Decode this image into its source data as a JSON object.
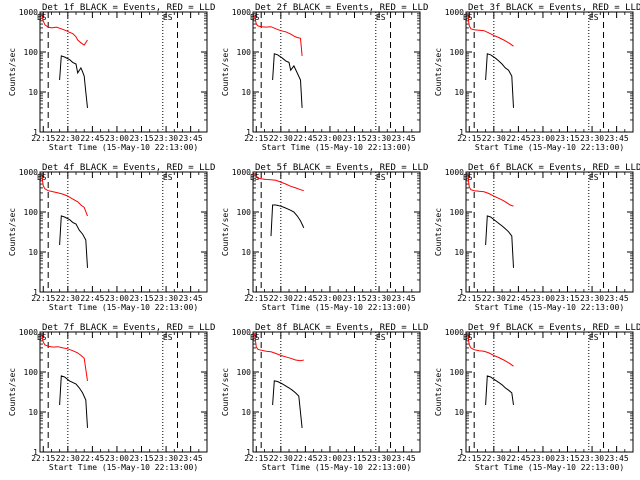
{
  "figure": {
    "background": "#ffffff",
    "events_color": "#000000",
    "lld_color": "#ff0000"
  },
  "chart_data": [
    {
      "type": "line",
      "title": "Det 1f BLACK = Events, RED = LLD",
      "xlabel": "Start Time (15-May-10 22:13:00)",
      "ylabel": "Counts/sec",
      "xlim": [
        "22:13",
        "23:55"
      ],
      "ylim": [
        1,
        1000
      ],
      "y_scale": "log",
      "x_ticks": [
        "22:15",
        "22:30",
        "22:45",
        "23:00",
        "23:15",
        "23:30",
        "23:45"
      ],
      "y_ticks": [
        "1",
        "10",
        "100",
        "1000"
      ],
      "markers": [
        {
          "label": "ES",
          "x": "22:14"
        },
        {
          "label": "ES",
          "x": "23:31"
        }
      ],
      "dashed_lines": [
        "22:18",
        "23:37"
      ],
      "dotted_lines": [
        "22:30",
        "23:28"
      ],
      "series": [
        {
          "name": "RED = LLD",
          "x": [
            "22:14",
            "22:15",
            "22:16",
            "22:18",
            "22:20",
            "22:23",
            "22:26",
            "22:29",
            "22:31",
            "22:33",
            "22:35",
            "22:36",
            "22:38",
            "22:40",
            "22:42"
          ],
          "y": [
            900,
            600,
            480,
            420,
            400,
            420,
            380,
            340,
            310,
            290,
            240,
            200,
            170,
            150,
            200
          ]
        },
        {
          "name": "BLACK = Events",
          "x": [
            "22:25",
            "22:26",
            "22:28",
            "22:31",
            "22:33",
            "22:35",
            "22:36",
            "22:38",
            "22:39",
            "22:40",
            "22:41",
            "22:42"
          ],
          "y": [
            20,
            80,
            75,
            65,
            55,
            50,
            30,
            40,
            32,
            25,
            10,
            4
          ]
        }
      ]
    },
    {
      "type": "line",
      "title": "Det 2f BLACK = Events, RED = LLD",
      "xlabel": "Start Time (15-May-10 22:13:00)",
      "ylabel": "Counts/sec",
      "xlim": [
        "22:13",
        "23:55"
      ],
      "ylim": [
        1,
        1000
      ],
      "y_scale": "log",
      "x_ticks": [
        "22:15",
        "22:30",
        "22:45",
        "23:00",
        "23:15",
        "23:30",
        "23:45"
      ],
      "y_ticks": [
        "1",
        "10",
        "100",
        "1000"
      ],
      "markers": [
        {
          "label": "ES",
          "x": "22:14"
        },
        {
          "label": "ES",
          "x": "23:31"
        }
      ],
      "dashed_lines": [
        "22:18",
        "23:37"
      ],
      "dotted_lines": [
        "22:30",
        "23:28"
      ],
      "series": [
        {
          "name": "RED = LLD",
          "x": [
            "22:14",
            "22:15",
            "22:16",
            "22:18",
            "22:21",
            "22:24",
            "22:27",
            "22:30",
            "22:33",
            "22:36",
            "22:38",
            "22:40",
            "22:42",
            "22:43"
          ],
          "y": [
            800,
            500,
            450,
            430,
            420,
            430,
            380,
            340,
            320,
            280,
            250,
            230,
            220,
            80
          ]
        },
        {
          "name": "BLACK = Events",
          "x": [
            "22:25",
            "22:26",
            "22:28",
            "22:31",
            "22:33",
            "22:35",
            "22:36",
            "22:38",
            "22:40",
            "22:42",
            "22:43"
          ],
          "y": [
            20,
            90,
            85,
            70,
            60,
            55,
            35,
            45,
            30,
            20,
            4
          ]
        }
      ]
    },
    {
      "type": "line",
      "title": "Det 3f BLACK = Events, RED = LLD",
      "xlabel": "Start Time (15-May-10 22:13:00)",
      "ylabel": "Counts/sec",
      "xlim": [
        "22:13",
        "23:55"
      ],
      "ylim": [
        1,
        1000
      ],
      "y_scale": "log",
      "x_ticks": [
        "22:15",
        "22:30",
        "22:45",
        "23:00",
        "23:15",
        "23:30",
        "23:45"
      ],
      "y_ticks": [
        "1",
        "10",
        "100",
        "1000"
      ],
      "markers": [
        {
          "label": "ES",
          "x": "22:14"
        },
        {
          "label": "ES",
          "x": "23:31"
        }
      ],
      "dashed_lines": [
        "22:18",
        "23:37"
      ],
      "dotted_lines": [
        "22:30",
        "23:28"
      ],
      "series": [
        {
          "name": "RED = LLD",
          "x": [
            "22:14",
            "22:15",
            "22:16",
            "22:18",
            "22:21",
            "22:24",
            "22:27",
            "22:30",
            "22:33",
            "22:36",
            "22:38",
            "22:40",
            "22:42"
          ],
          "y": [
            900,
            450,
            380,
            360,
            350,
            340,
            300,
            260,
            230,
            200,
            180,
            160,
            140
          ]
        },
        {
          "name": "BLACK = Events",
          "x": [
            "22:25",
            "22:26",
            "22:28",
            "22:31",
            "22:33",
            "22:35",
            "22:37",
            "22:39",
            "22:41",
            "22:42"
          ],
          "y": [
            20,
            90,
            85,
            70,
            60,
            50,
            40,
            35,
            25,
            4
          ]
        }
      ]
    },
    {
      "type": "line",
      "title": "Det 4f BLACK = Events, RED = LLD",
      "xlabel": "Start Time (15-May-10 22:13:00)",
      "ylabel": "Counts/sec",
      "xlim": [
        "22:13",
        "23:55"
      ],
      "ylim": [
        1,
        1000
      ],
      "y_scale": "log",
      "x_ticks": [
        "22:15",
        "22:30",
        "22:45",
        "23:00",
        "23:15",
        "23:30",
        "23:45"
      ],
      "y_ticks": [
        "1",
        "10",
        "100",
        "1000"
      ],
      "markers": [
        {
          "label": "ES",
          "x": "22:14"
        },
        {
          "label": "ES",
          "x": "23:31"
        }
      ],
      "dashed_lines": [
        "22:18",
        "23:37"
      ],
      "dotted_lines": [
        "22:30",
        "23:28"
      ],
      "series": [
        {
          "name": "RED = LLD",
          "x": [
            "22:14",
            "22:15",
            "22:16",
            "22:18",
            "22:21",
            "22:24",
            "22:27",
            "22:30",
            "22:33",
            "22:36",
            "22:38",
            "22:40",
            "22:42"
          ],
          "y": [
            900,
            450,
            380,
            340,
            320,
            300,
            280,
            250,
            210,
            180,
            150,
            130,
            80
          ]
        },
        {
          "name": "BLACK = Events",
          "x": [
            "22:25",
            "22:26",
            "22:28",
            "22:31",
            "22:33",
            "22:35",
            "22:37",
            "22:39",
            "22:41",
            "22:42"
          ],
          "y": [
            15,
            80,
            75,
            65,
            55,
            50,
            35,
            28,
            20,
            4
          ]
        }
      ]
    },
    {
      "type": "line",
      "title": "Det 5f BLACK = Events, RED = LLD",
      "xlabel": "Start Time (15-May-10 22:13:00)",
      "ylabel": "Counts/sec",
      "xlim": [
        "22:13",
        "23:55"
      ],
      "ylim": [
        1,
        1000
      ],
      "y_scale": "log",
      "x_ticks": [
        "22:15",
        "22:30",
        "22:45",
        "23:00",
        "23:15",
        "23:30",
        "23:45"
      ],
      "y_ticks": [
        "1",
        "10",
        "100",
        "1000"
      ],
      "markers": [
        {
          "label": "ES",
          "x": "22:14"
        },
        {
          "label": "ES",
          "x": "23:31"
        }
      ],
      "dashed_lines": [
        "22:18",
        "23:37"
      ],
      "dotted_lines": [
        "22:30",
        "23:28"
      ],
      "series": [
        {
          "name": "RED = LLD",
          "x": [
            "22:14",
            "22:15",
            "22:16",
            "22:18",
            "22:21",
            "22:24",
            "22:27",
            "22:30",
            "22:33",
            "22:36",
            "22:39",
            "22:42",
            "22:44"
          ],
          "y": [
            900,
            750,
            700,
            680,
            650,
            640,
            620,
            560,
            500,
            440,
            400,
            360,
            340
          ]
        },
        {
          "name": "BLACK = Events",
          "x": [
            "22:24",
            "22:25",
            "22:27",
            "22:30",
            "22:32",
            "22:34",
            "22:36",
            "22:38",
            "22:40",
            "22:42",
            "22:44"
          ],
          "y": [
            25,
            150,
            150,
            140,
            130,
            120,
            110,
            100,
            80,
            60,
            40
          ]
        }
      ]
    },
    {
      "type": "line",
      "title": "Det 6f BLACK = Events, RED = LLD",
      "xlabel": "Start Time (15-May-10 22:13:00)",
      "ylabel": "Counts/sec",
      "xlim": [
        "22:13",
        "23:55"
      ],
      "ylim": [
        1,
        1000
      ],
      "y_scale": "log",
      "x_ticks": [
        "22:15",
        "22:30",
        "22:45",
        "23:00",
        "23:15",
        "23:30",
        "23:45"
      ],
      "y_ticks": [
        "1",
        "10",
        "100",
        "1000"
      ],
      "markers": [
        {
          "label": "ES",
          "x": "22:14"
        },
        {
          "label": "ES",
          "x": "23:31"
        }
      ],
      "dashed_lines": [
        "22:18",
        "23:37"
      ],
      "dotted_lines": [
        "22:30",
        "23:28"
      ],
      "series": [
        {
          "name": "RED = LLD",
          "x": [
            "22:14",
            "22:15",
            "22:16",
            "22:18",
            "22:21",
            "22:24",
            "22:27",
            "22:30",
            "22:33",
            "22:36",
            "22:38",
            "22:40",
            "22:42"
          ],
          "y": [
            900,
            420,
            360,
            340,
            330,
            320,
            290,
            250,
            220,
            190,
            170,
            150,
            140
          ]
        },
        {
          "name": "BLACK = Events",
          "x": [
            "22:25",
            "22:26",
            "22:28",
            "22:31",
            "22:33",
            "22:35",
            "22:37",
            "22:39",
            "22:41",
            "22:42"
          ],
          "y": [
            15,
            80,
            75,
            60,
            52,
            45,
            38,
            32,
            25,
            4
          ]
        }
      ]
    },
    {
      "type": "line",
      "title": "Det 7f BLACK = Events, RED = LLD",
      "xlabel": "Start Time (15-May-10 22:13:00)",
      "ylabel": "Counts/sec",
      "xlim": [
        "22:13",
        "23:55"
      ],
      "ylim": [
        1,
        1000
      ],
      "y_scale": "log",
      "x_ticks": [
        "22:15",
        "22:30",
        "22:45",
        "23:00",
        "23:15",
        "23:30",
        "23:45"
      ],
      "y_ticks": [
        "1",
        "10",
        "100",
        "1000"
      ],
      "markers": [
        {
          "label": "ES",
          "x": "22:14"
        },
        {
          "label": "ES",
          "x": "23:31"
        }
      ],
      "dashed_lines": [
        "22:18",
        "23:37"
      ],
      "dotted_lines": [
        "22:30",
        "23:28"
      ],
      "series": [
        {
          "name": "RED = LLD",
          "x": [
            "22:14",
            "22:15",
            "22:16",
            "22:18",
            "22:21",
            "22:24",
            "22:27",
            "22:30",
            "22:33",
            "22:36",
            "22:38",
            "22:40",
            "22:42"
          ],
          "y": [
            900,
            560,
            480,
            440,
            420,
            430,
            400,
            380,
            340,
            300,
            260,
            220,
            60
          ]
        },
        {
          "name": "BLACK = Events",
          "x": [
            "22:25",
            "22:26",
            "22:28",
            "22:31",
            "22:33",
            "22:35",
            "22:37",
            "22:39",
            "22:41",
            "22:42"
          ],
          "y": [
            15,
            80,
            75,
            60,
            55,
            50,
            40,
            30,
            20,
            4
          ]
        }
      ]
    },
    {
      "type": "line",
      "title": "Det 8f BLACK = Events, RED = LLD",
      "xlabel": "Start Time (15-May-10 22:13:00)",
      "ylabel": "Counts/sec",
      "xlim": [
        "22:13",
        "23:55"
      ],
      "ylim": [
        1,
        1000
      ],
      "y_scale": "log",
      "x_ticks": [
        "22:15",
        "22:30",
        "22:45",
        "23:00",
        "23:15",
        "23:30",
        "23:45"
      ],
      "y_ticks": [
        "1",
        "10",
        "100",
        "1000"
      ],
      "markers": [
        {
          "label": "ES",
          "x": "22:14"
        },
        {
          "label": "ES",
          "x": "23:31"
        }
      ],
      "dashed_lines": [
        "22:18",
        "23:37"
      ],
      "dotted_lines": [
        "22:30",
        "23:28"
      ],
      "series": [
        {
          "name": "RED = LLD",
          "x": [
            "22:14",
            "22:15",
            "22:16",
            "22:18",
            "22:21",
            "22:24",
            "22:27",
            "22:30",
            "22:33",
            "22:36",
            "22:39",
            "22:42",
            "22:44"
          ],
          "y": [
            900,
            420,
            370,
            350,
            330,
            320,
            290,
            260,
            240,
            220,
            200,
            190,
            200
          ]
        },
        {
          "name": "BLACK = Events",
          "x": [
            "22:25",
            "22:26",
            "22:28",
            "22:31",
            "22:33",
            "22:35",
            "22:37",
            "22:39",
            "22:41",
            "22:43"
          ],
          "y": [
            15,
            60,
            58,
            50,
            45,
            40,
            35,
            30,
            25,
            4
          ]
        }
      ]
    },
    {
      "type": "line",
      "title": "Det 9f BLACK = Events, RED = LLD",
      "xlabel": "Start Time (15-May-10 22:13:00)",
      "ylabel": "Counts/sec",
      "xlim": [
        "22:13",
        "23:55"
      ],
      "ylim": [
        1,
        1000
      ],
      "y_scale": "log",
      "x_ticks": [
        "22:15",
        "22:30",
        "22:45",
        "23:00",
        "23:15",
        "23:30",
        "23:45"
      ],
      "y_ticks": [
        "1",
        "10",
        "100",
        "1000"
      ],
      "markers": [
        {
          "label": "ES",
          "x": "22:14"
        },
        {
          "label": "ES",
          "x": "23:31"
        }
      ],
      "dashed_lines": [
        "22:18",
        "23:37"
      ],
      "dotted_lines": [
        "22:30",
        "23:28"
      ],
      "series": [
        {
          "name": "RED = LLD",
          "x": [
            "22:14",
            "22:15",
            "22:16",
            "22:18",
            "22:21",
            "22:24",
            "22:27",
            "22:30",
            "22:33",
            "22:36",
            "22:38",
            "22:40",
            "22:42"
          ],
          "y": [
            900,
            480,
            400,
            360,
            340,
            330,
            300,
            260,
            230,
            200,
            180,
            160,
            140
          ]
        },
        {
          "name": "BLACK = Events",
          "x": [
            "22:25",
            "22:26",
            "22:28",
            "22:31",
            "22:33",
            "22:35",
            "22:37",
            "22:39",
            "22:41",
            "22:42"
          ],
          "y": [
            15,
            80,
            75,
            62,
            55,
            48,
            40,
            35,
            30,
            15
          ]
        }
      ]
    }
  ]
}
